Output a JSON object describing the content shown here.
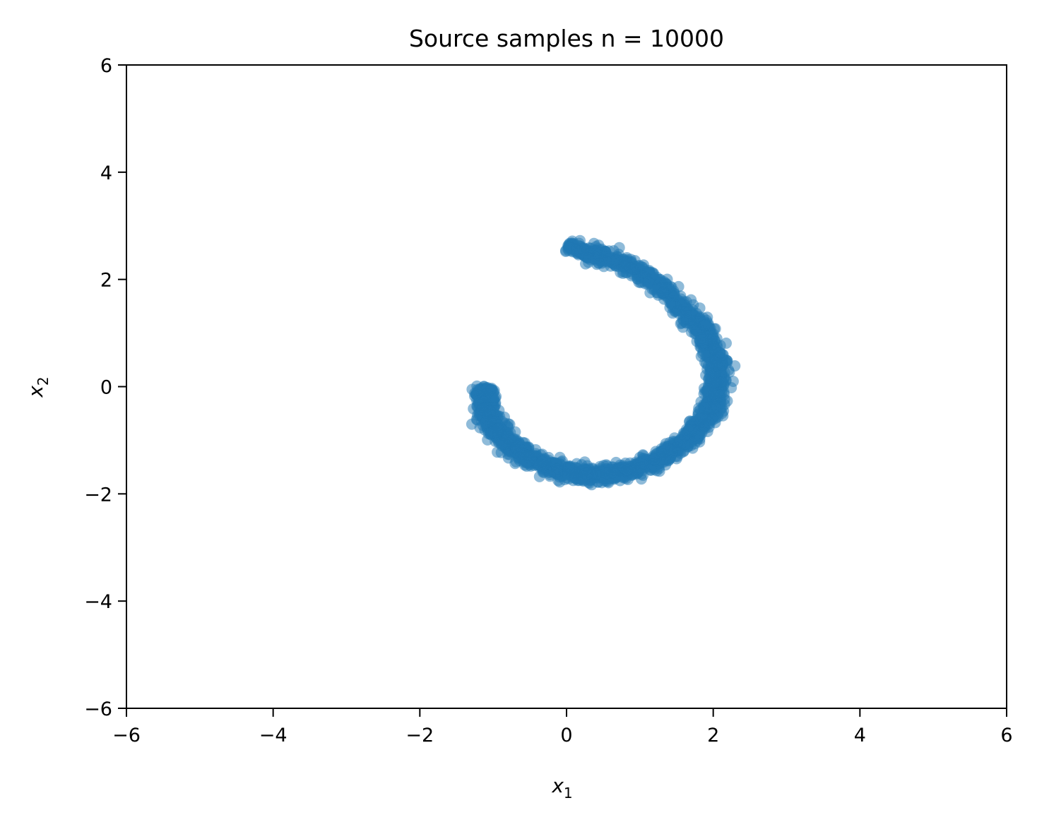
{
  "chart_data": {
    "type": "scatter",
    "title": "Source samples n = 10000",
    "xlabel": "x",
    "xlabel_sub": "1",
    "ylabel": "x",
    "ylabel_sub": "2",
    "xlim": [
      -6,
      6
    ],
    "ylim": [
      -6,
      6
    ],
    "xticks": [
      -6,
      -4,
      -2,
      0,
      2,
      4,
      6
    ],
    "yticks": [
      -6,
      -4,
      -2,
      0,
      2,
      4,
      6
    ],
    "xtick_labels": [
      "−6",
      "−4",
      "−2",
      "0",
      "2",
      "4",
      "6"
    ],
    "ytick_labels": [
      "−6",
      "−4",
      "−2",
      "0",
      "2",
      "4",
      "6"
    ],
    "grid": false,
    "legend": "none",
    "series": [
      {
        "color": "#1f77b4",
        "marker_alpha": 0.5,
        "n_points": 10000,
        "shape": "spiral arc from about (-1.1, 0.0) through (0.3, -1.65), (2.05, 0.25) to (0.0, 2.6)",
        "points": [
          [
            -1.1,
            0.0
          ],
          [
            -1.12,
            -0.2
          ],
          [
            -1.1,
            -0.4
          ],
          [
            -1.05,
            -0.6
          ],
          [
            -0.97,
            -0.8
          ],
          [
            -0.86,
            -0.98
          ],
          [
            -0.72,
            -1.15
          ],
          [
            -0.56,
            -1.3
          ],
          [
            -0.38,
            -1.43
          ],
          [
            -0.19,
            -1.53
          ],
          [
            0.0,
            -1.6
          ],
          [
            0.2,
            -1.64
          ],
          [
            0.4,
            -1.65
          ],
          [
            0.6,
            -1.63
          ],
          [
            0.8,
            -1.58
          ],
          [
            1.0,
            -1.5
          ],
          [
            1.2,
            -1.39
          ],
          [
            1.4,
            -1.25
          ],
          [
            1.58,
            -1.08
          ],
          [
            1.74,
            -0.88
          ],
          [
            1.87,
            -0.66
          ],
          [
            1.97,
            -0.42
          ],
          [
            2.03,
            -0.17
          ],
          [
            2.06,
            0.08
          ],
          [
            2.05,
            0.34
          ],
          [
            2.01,
            0.59
          ],
          [
            1.94,
            0.84
          ],
          [
            1.84,
            1.08
          ],
          [
            1.71,
            1.3
          ],
          [
            1.55,
            1.51
          ],
          [
            1.37,
            1.79
          ],
          [
            1.17,
            1.98
          ],
          [
            0.95,
            2.18
          ],
          [
            0.72,
            2.34
          ],
          [
            0.48,
            2.46
          ],
          [
            0.24,
            2.55
          ],
          [
            0.0,
            2.6
          ]
        ]
      }
    ]
  }
}
